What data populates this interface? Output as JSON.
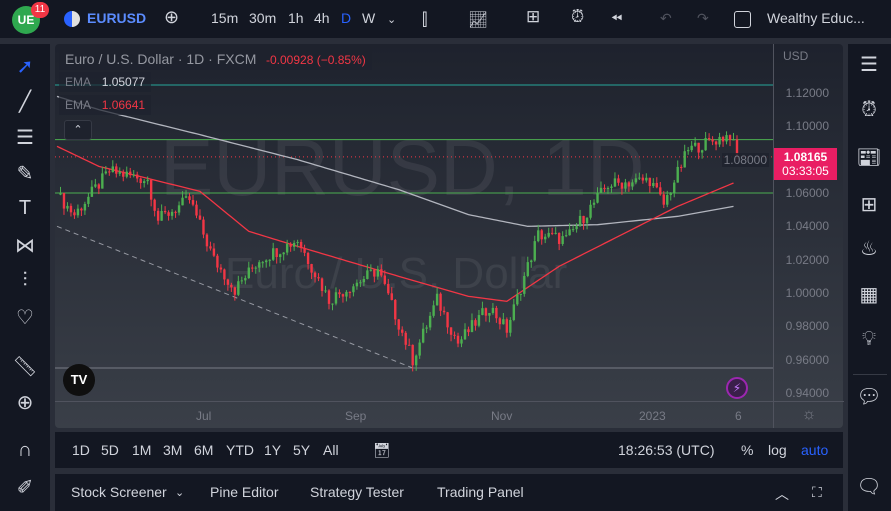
{
  "topbar": {
    "badge": "11",
    "symbol": "EURUSD",
    "intervals": [
      "15m",
      "30m",
      "1h",
      "4h",
      "D",
      "W"
    ],
    "active_interval": "D",
    "layout_name": "Wealthy Educ..."
  },
  "legend": {
    "title": "Euro / U.S. Dollar · 1D · FXCM",
    "change": "-0.00928 (−0.85%)",
    "ema1_label": "EMA",
    "ema1_value": "1.05077",
    "ema2_label": "EMA",
    "ema2_value": "1.06641"
  },
  "watermark": {
    "symbol": "EURUSD, 1D",
    "name": "Euro / U.S. Dollar"
  },
  "price_axis": {
    "currency": "USD",
    "last_price": "1.08165",
    "countdown": "03:33:05",
    "ticks": [
      "1.12000",
      "1.10000",
      "1.08000",
      "1.06000",
      "1.04000",
      "1.02000",
      "1.00000",
      "0.98000",
      "0.96000",
      "0.94000"
    ]
  },
  "time_axis": [
    "Jul",
    "Sep",
    "Nov",
    "2023",
    "6"
  ],
  "bottom_toolbar": {
    "ranges": [
      "1D",
      "5D",
      "1M",
      "3M",
      "6M",
      "YTD",
      "1Y",
      "5Y",
      "All"
    ],
    "clock": "18:26:53 (UTC)",
    "percent": "%",
    "log": "log",
    "auto": "auto"
  },
  "panel": {
    "tabs": [
      "Stock Screener",
      "Pine Editor",
      "Strategy Tester",
      "Trading Panel"
    ]
  },
  "colors": {
    "up": "#4caf50",
    "down": "#f23645",
    "accent": "#2962ff",
    "price_tag": "#e91e63"
  },
  "chart_data": {
    "type": "candlestick",
    "title": "Euro / U.S. Dollar · 1D · FXCM",
    "ylim": [
      0.93,
      1.135
    ],
    "days": 195,
    "close_anchors": [
      [
        0,
        1.059
      ],
      [
        5,
        1.047
      ],
      [
        15,
        1.073
      ],
      [
        26,
        1.068
      ],
      [
        29,
        1.044
      ],
      [
        38,
        1.056
      ],
      [
        45,
        1.02
      ],
      [
        51,
        1.002
      ],
      [
        58,
        1.02
      ],
      [
        69,
        1.032
      ],
      [
        78,
        0.996
      ],
      [
        92,
        1.014
      ],
      [
        102,
        0.96
      ],
      [
        109,
        0.996
      ],
      [
        115,
        0.97
      ],
      [
        124,
        0.992
      ],
      [
        129,
        0.978
      ],
      [
        138,
        1.035
      ],
      [
        146,
        1.032
      ],
      [
        158,
        1.065
      ],
      [
        170,
        1.068
      ],
      [
        174,
        1.053
      ],
      [
        181,
        1.086
      ],
      [
        193,
        1.095
      ],
      [
        195,
        1.0817
      ]
    ],
    "ema_200": [
      [
        0,
        1.118
      ],
      [
        12,
        1.11
      ],
      [
        41,
        1.095
      ],
      [
        69,
        1.08
      ],
      [
        98,
        1.062
      ],
      [
        118,
        1.047
      ],
      [
        135,
        1.04
      ],
      [
        155,
        1.041
      ],
      [
        178,
        1.046
      ],
      [
        194,
        1.052
      ]
    ],
    "ema_50": [
      [
        0,
        1.088
      ],
      [
        12,
        1.076
      ],
      [
        41,
        1.061
      ],
      [
        55,
        1.037
      ],
      [
        69,
        1.028
      ],
      [
        98,
        1.01
      ],
      [
        118,
        0.998
      ],
      [
        129,
        0.995
      ],
      [
        144,
        1.016
      ],
      [
        161,
        1.034
      ],
      [
        178,
        1.052
      ],
      [
        194,
        1.066
      ]
    ],
    "horizontal_levels": [
      1.1248,
      1.092,
      1.06,
      0.955
    ],
    "trendline": [
      [
        0,
        1.04
      ],
      [
        102,
        0.955
      ]
    ]
  }
}
